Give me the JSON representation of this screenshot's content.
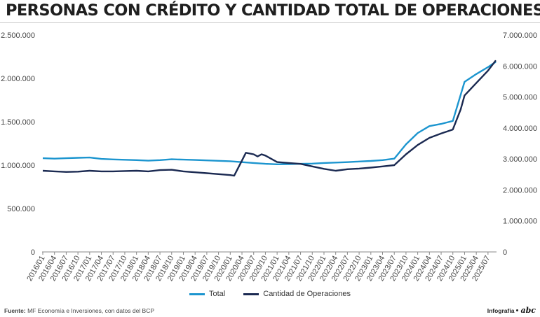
{
  "title": "PERSONAS CON CRÉDITO Y CANTIDAD TOTAL DE OPERACIONES",
  "source_label": "Fuente:",
  "source_text": "MF Economía e Inversiones, con datos del BCP",
  "credit_text": "Infografía",
  "credit_logo": "abc",
  "colors": {
    "total": "#1c95cf",
    "operaciones": "#1b2a52",
    "axis": "#444444"
  },
  "chart_data": {
    "type": "line",
    "title": "PERSONAS CON CRÉDITO Y CANTIDAD TOTAL DE OPERACIONES",
    "left_axis": {
      "ylim": [
        0,
        2500000
      ],
      "ticks": [
        "0",
        "500.000",
        "1.000.000",
        "1.500.000",
        "2.000.000",
        "2.500.000"
      ]
    },
    "right_axis": {
      "ylim": [
        0,
        7000000
      ],
      "ticks": [
        "0",
        "1.000.000",
        "2.000.000",
        "3.000.000",
        "4.000.000",
        "5.000.000",
        "6.000.000",
        "7.000.000"
      ]
    },
    "x_tick_labels": [
      "2016/01",
      "2016/04",
      "2016/07",
      "2016/10",
      "2017/01",
      "2017/04",
      "2017/07",
      "2017/10",
      "2018/01",
      "2018/04",
      "2018/07",
      "2018/10",
      "2019/01",
      "2019/04",
      "2019/07",
      "2019/10",
      "2020/01",
      "2020/04",
      "2020/07",
      "2020/10",
      "2021/01",
      "2021/04",
      "2021/07",
      "2021/10",
      "2022/01",
      "2022/04",
      "2022/07",
      "2022/10",
      "2023/01",
      "2023/04",
      "2023/07",
      "2023/10",
      "2024/01",
      "2024/04",
      "2024/07",
      "2024/10",
      "2025/01",
      "2025/04",
      "2025/07"
    ],
    "legend_placement": "bottom-center",
    "series": [
      {
        "name": "Total",
        "axis": "left",
        "points": [
          [
            "2016/01",
            1080000
          ],
          [
            "2016/04",
            1075000
          ],
          [
            "2016/07",
            1080000
          ],
          [
            "2016/10",
            1085000
          ],
          [
            "2017/01",
            1088000
          ],
          [
            "2017/04",
            1072000
          ],
          [
            "2017/07",
            1066000
          ],
          [
            "2017/10",
            1062000
          ],
          [
            "2018/01",
            1058000
          ],
          [
            "2018/04",
            1052000
          ],
          [
            "2018/07",
            1058000
          ],
          [
            "2018/10",
            1068000
          ],
          [
            "2019/01",
            1064000
          ],
          [
            "2019/04",
            1060000
          ],
          [
            "2019/07",
            1055000
          ],
          [
            "2019/10",
            1050000
          ],
          [
            "2020/01",
            1045000
          ],
          [
            "2020/04",
            1035000
          ],
          [
            "2020/07",
            1025000
          ],
          [
            "2020/10",
            1015000
          ],
          [
            "2021/01",
            1010000
          ],
          [
            "2021/04",
            1012000
          ],
          [
            "2021/07",
            1015000
          ],
          [
            "2021/10",
            1018000
          ],
          [
            "2022/01",
            1025000
          ],
          [
            "2022/04",
            1030000
          ],
          [
            "2022/07",
            1035000
          ],
          [
            "2022/10",
            1042000
          ],
          [
            "2023/01",
            1048000
          ],
          [
            "2023/04",
            1058000
          ],
          [
            "2023/07",
            1075000
          ],
          [
            "2023/10",
            1240000
          ],
          [
            "2024/01",
            1370000
          ],
          [
            "2024/04",
            1450000
          ],
          [
            "2024/07",
            1475000
          ],
          [
            "2024/10",
            1510000
          ],
          [
            "2025/01",
            1960000
          ],
          [
            "2025/04",
            2050000
          ],
          [
            "2025/07",
            2130000
          ],
          [
            "2025/09",
            2190000
          ]
        ]
      },
      {
        "name": "Cantidad de Operaciones",
        "axis": "right",
        "points": [
          [
            "2016/01",
            2620000
          ],
          [
            "2016/04",
            2600000
          ],
          [
            "2016/07",
            2580000
          ],
          [
            "2016/10",
            2590000
          ],
          [
            "2017/01",
            2620000
          ],
          [
            "2017/04",
            2600000
          ],
          [
            "2017/07",
            2600000
          ],
          [
            "2017/10",
            2610000
          ],
          [
            "2018/01",
            2620000
          ],
          [
            "2018/04",
            2600000
          ],
          [
            "2018/07",
            2640000
          ],
          [
            "2018/10",
            2650000
          ],
          [
            "2019/01",
            2600000
          ],
          [
            "2019/04",
            2570000
          ],
          [
            "2019/07",
            2540000
          ],
          [
            "2019/10",
            2510000
          ],
          [
            "2020/01",
            2480000
          ],
          [
            "2020/02",
            2460000
          ],
          [
            "2020/04",
            2950000
          ],
          [
            "2020/05",
            3200000
          ],
          [
            "2020/07",
            3150000
          ],
          [
            "2020/08",
            3080000
          ],
          [
            "2020/09",
            3150000
          ],
          [
            "2020/10",
            3110000
          ],
          [
            "2021/01",
            2900000
          ],
          [
            "2021/04",
            2870000
          ],
          [
            "2021/07",
            2840000
          ],
          [
            "2021/10",
            2760000
          ],
          [
            "2022/01",
            2680000
          ],
          [
            "2022/04",
            2620000
          ],
          [
            "2022/07",
            2670000
          ],
          [
            "2022/10",
            2690000
          ],
          [
            "2023/01",
            2720000
          ],
          [
            "2023/04",
            2760000
          ],
          [
            "2023/07",
            2800000
          ],
          [
            "2023/10",
            3150000
          ],
          [
            "2024/01",
            3450000
          ],
          [
            "2024/04",
            3680000
          ],
          [
            "2024/07",
            3820000
          ],
          [
            "2024/10",
            3950000
          ],
          [
            "2024/12",
            4600000
          ],
          [
            "2025/01",
            5050000
          ],
          [
            "2025/04",
            5450000
          ],
          [
            "2025/07",
            5850000
          ],
          [
            "2025/09",
            6180000
          ]
        ]
      }
    ]
  }
}
